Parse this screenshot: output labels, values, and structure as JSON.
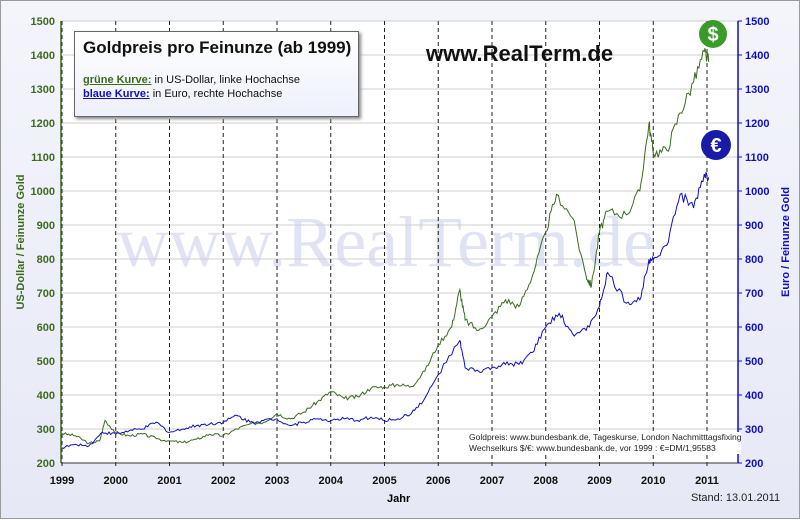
{
  "chart_data": {
    "type": "line",
    "title": "Goldpreis pro Feinunze (ab 1999)",
    "legend": {
      "green_key": "grüne Kurve:",
      "green_text": "in US-Dollar, linke Hochachse",
      "blue_key": "blaue Kurve:",
      "blue_text": "in Euro, rechte Hochachse"
    },
    "website": "www.RealTerm.de",
    "watermark": "www.RealTerm.de",
    "xlabel": "Jahr",
    "ylabel_left": "US-Dollar / Feinunze Gold",
    "ylabel_right": "Euro / Feinunze Gold",
    "xlim": [
      1999,
      2011.6
    ],
    "ylim": [
      200,
      1500
    ],
    "x_ticks": [
      "1999",
      "2000",
      "2001",
      "2002",
      "2003",
      "2004",
      "2005",
      "2006",
      "2007",
      "2008",
      "2009",
      "2010",
      "2011"
    ],
    "y_ticks": [
      "200",
      "300",
      "400",
      "500",
      "600",
      "700",
      "800",
      "900",
      "1000",
      "1100",
      "1200",
      "1300",
      "1400",
      "1500"
    ],
    "source_lines": [
      "Goldpreis: www.bundesbank.de, Tageskurse, London Nachmitttagsfixing",
      "Wechselkurs $/€: www.bundesbank.de, vor 1999 : €=DM/1,95583"
    ],
    "stand": "Stand: 13.01.2011",
    "series": [
      {
        "name": "US-Dollar",
        "color": "#3a6b1f",
        "x": [
          1999,
          1999.25,
          1999.5,
          1999.7,
          1999.8,
          2000,
          2000.25,
          2000.5,
          2000.75,
          2001,
          2001.25,
          2001.5,
          2001.75,
          2002,
          2002.25,
          2002.5,
          2002.75,
          2003,
          2003.25,
          2003.5,
          2003.75,
          2004,
          2004.25,
          2004.5,
          2004.75,
          2005,
          2005.25,
          2005.5,
          2005.75,
          2006,
          2006.25,
          2006.4,
          2006.5,
          2006.75,
          2007,
          2007.25,
          2007.5,
          2007.75,
          2008,
          2008.2,
          2008.5,
          2008.75,
          2008.85,
          2009,
          2009.15,
          2009.5,
          2009.75,
          2009.92,
          2010,
          2010.25,
          2010.5,
          2010.75,
          2010.95,
          2011.03
        ],
        "values": [
          287,
          280,
          258,
          265,
          325,
          290,
          280,
          285,
          272,
          265,
          260,
          270,
          285,
          280,
          300,
          315,
          320,
          345,
          330,
          350,
          380,
          410,
          390,
          395,
          420,
          425,
          430,
          425,
          470,
          550,
          600,
          710,
          620,
          590,
          630,
          680,
          660,
          750,
          880,
          990,
          920,
          750,
          720,
          880,
          940,
          930,
          1000,
          1200,
          1110,
          1120,
          1230,
          1320,
          1410,
          1380
        ]
      },
      {
        "name": "Euro",
        "color": "#1010c0",
        "x": [
          1999,
          1999.25,
          1999.5,
          1999.75,
          2000,
          2000.25,
          2000.5,
          2000.75,
          2001,
          2001.25,
          2001.5,
          2001.75,
          2002,
          2002.25,
          2002.5,
          2002.75,
          2003,
          2003.25,
          2003.5,
          2003.75,
          2004,
          2004.25,
          2004.5,
          2004.75,
          2005,
          2005.25,
          2005.5,
          2005.75,
          2006,
          2006.4,
          2006.5,
          2006.75,
          2007,
          2007.25,
          2007.5,
          2007.75,
          2008,
          2008.25,
          2008.5,
          2008.75,
          2009,
          2009.15,
          2009.5,
          2009.75,
          2009.92,
          2010,
          2010.25,
          2010.5,
          2010.75,
          2010.95,
          2011.03
        ],
        "values": [
          245,
          255,
          250,
          290,
          285,
          295,
          300,
          320,
          290,
          300,
          310,
          315,
          320,
          340,
          320,
          325,
          330,
          310,
          320,
          330,
          325,
          330,
          325,
          335,
          325,
          330,
          345,
          390,
          460,
          560,
          480,
          470,
          480,
          490,
          490,
          525,
          600,
          640,
          580,
          590,
          660,
          760,
          670,
          680,
          800,
          800,
          840,
          990,
          950,
          1050,
          1040
        ]
      }
    ]
  }
}
